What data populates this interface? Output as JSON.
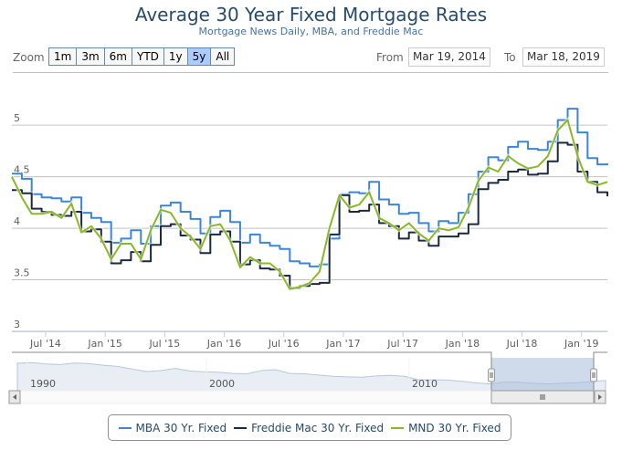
{
  "header": {
    "title": "Average 30 Year Fixed Mortgage Rates",
    "subtitle": "Mortgage News Daily, MBA, and Freddie Mac"
  },
  "range_selector": {
    "zoom_label": "Zoom",
    "buttons": [
      {
        "label": "1m",
        "active": false
      },
      {
        "label": "3m",
        "active": false
      },
      {
        "label": "6m",
        "active": false
      },
      {
        "label": "YTD",
        "active": false
      },
      {
        "label": "1y",
        "active": false
      },
      {
        "label": "5y",
        "active": true
      },
      {
        "label": "All",
        "active": false
      }
    ],
    "from_label": "From",
    "from_value": "Mar 19, 2014",
    "to_label": "To",
    "to_value": "Mar 18, 2019"
  },
  "navigator": {
    "year_labels": [
      "1990",
      "2000",
      "2010"
    ],
    "selected_range": [
      "Mar 19, 2014",
      "Mar 18, 2019"
    ]
  },
  "colors": {
    "mba": "#3d85d8",
    "freddie": "#1a2a40",
    "mnd": "#8bb825",
    "grid": "#c0c0c0",
    "axis_text": "#606060"
  },
  "chart_data": {
    "type": "line",
    "title": "Average 30 Year Fixed Mortgage Rates",
    "subtitle": "Mortgage News Daily, MBA, and Freddie Mac",
    "xlabel": "",
    "ylabel": "",
    "ylim": [
      3,
      5.4
    ],
    "yticks": [
      3,
      3.5,
      4,
      4.5,
      5
    ],
    "ytick_labels": [
      "3",
      "3.5",
      "4",
      "4.5",
      "5"
    ],
    "xticks": [
      "Jul '14",
      "Jan '15",
      "Jul '15",
      "Jan '16",
      "Jul '16",
      "Jan '17",
      "Jul '17",
      "Jan '18",
      "Jul '18",
      "Jan '19"
    ],
    "grid": true,
    "legend": "bottom-center",
    "x": [
      "2014-03",
      "2014-04",
      "2014-05",
      "2014-06",
      "2014-07",
      "2014-08",
      "2014-09",
      "2014-10",
      "2014-11",
      "2014-12",
      "2015-01",
      "2015-02",
      "2015-03",
      "2015-04",
      "2015-05",
      "2015-06",
      "2015-07",
      "2015-08",
      "2015-09",
      "2015-10",
      "2015-11",
      "2015-12",
      "2016-01",
      "2016-02",
      "2016-03",
      "2016-04",
      "2016-05",
      "2016-06",
      "2016-07",
      "2016-08",
      "2016-09",
      "2016-10",
      "2016-11",
      "2016-12",
      "2017-01",
      "2017-02",
      "2017-03",
      "2017-04",
      "2017-05",
      "2017-06",
      "2017-07",
      "2017-08",
      "2017-09",
      "2017-10",
      "2017-11",
      "2017-12",
      "2018-01",
      "2018-02",
      "2018-03",
      "2018-04",
      "2018-05",
      "2018-06",
      "2018-07",
      "2018-08",
      "2018-09",
      "2018-10",
      "2018-11",
      "2018-12",
      "2019-01",
      "2019-02",
      "2019-03"
    ],
    "series": [
      {
        "name": "MBA 30 Yr. Fixed",
        "values": [
          4.53,
          4.48,
          4.33,
          4.3,
          4.29,
          4.26,
          4.3,
          4.15,
          4.1,
          4.06,
          3.86,
          3.9,
          3.98,
          3.85,
          4.02,
          4.22,
          4.25,
          4.16,
          4.09,
          3.95,
          4.11,
          4.17,
          4.06,
          3.86,
          3.94,
          3.86,
          3.83,
          3.8,
          3.68,
          3.66,
          3.63,
          3.65,
          3.9,
          4.33,
          4.35,
          4.34,
          4.45,
          4.28,
          4.23,
          4.14,
          4.15,
          4.05,
          3.97,
          4.07,
          4.05,
          4.15,
          4.33,
          4.55,
          4.69,
          4.66,
          4.79,
          4.84,
          4.77,
          4.76,
          4.84,
          5.05,
          5.16,
          4.93,
          4.68,
          4.62,
          4.63
        ]
      },
      {
        "name": "Freddie Mac 30 Yr. Fixed",
        "values": [
          4.37,
          4.34,
          4.19,
          4.16,
          4.13,
          4.12,
          4.16,
          3.97,
          3.99,
          3.87,
          3.66,
          3.69,
          3.77,
          3.68,
          3.84,
          4.02,
          4.04,
          3.93,
          3.89,
          3.76,
          3.94,
          3.97,
          3.87,
          3.65,
          3.69,
          3.61,
          3.6,
          3.54,
          3.42,
          3.44,
          3.46,
          3.47,
          3.94,
          4.32,
          4.16,
          4.17,
          4.23,
          4.05,
          4.02,
          3.9,
          3.96,
          3.88,
          3.83,
          3.92,
          3.92,
          3.95,
          4.04,
          4.38,
          4.44,
          4.47,
          4.55,
          4.57,
          4.52,
          4.53,
          4.65,
          4.83,
          4.81,
          4.55,
          4.45,
          4.35,
          4.31
        ]
      },
      {
        "name": "MND 30 Yr. Fixed",
        "values": [
          4.5,
          4.3,
          4.14,
          4.14,
          4.16,
          4.1,
          4.24,
          3.96,
          4.02,
          3.9,
          3.7,
          3.85,
          3.85,
          3.7,
          3.98,
          4.18,
          4.15,
          4.0,
          3.92,
          3.8,
          4.02,
          4.04,
          3.88,
          3.62,
          3.72,
          3.66,
          3.66,
          3.58,
          3.41,
          3.43,
          3.47,
          3.58,
          4.0,
          4.32,
          4.2,
          4.23,
          4.35,
          4.1,
          4.05,
          3.98,
          4.05,
          3.95,
          3.88,
          4.0,
          3.98,
          4.01,
          4.2,
          4.46,
          4.59,
          4.55,
          4.7,
          4.63,
          4.58,
          4.6,
          4.7,
          4.95,
          5.05,
          4.7,
          4.45,
          4.42,
          4.45
        ]
      }
    ]
  },
  "legend": {
    "items": [
      {
        "label": "MBA 30 Yr. Fixed"
      },
      {
        "label": "Freddie Mac 30 Yr. Fixed"
      },
      {
        "label": "MND 30 Yr. Fixed"
      }
    ]
  }
}
